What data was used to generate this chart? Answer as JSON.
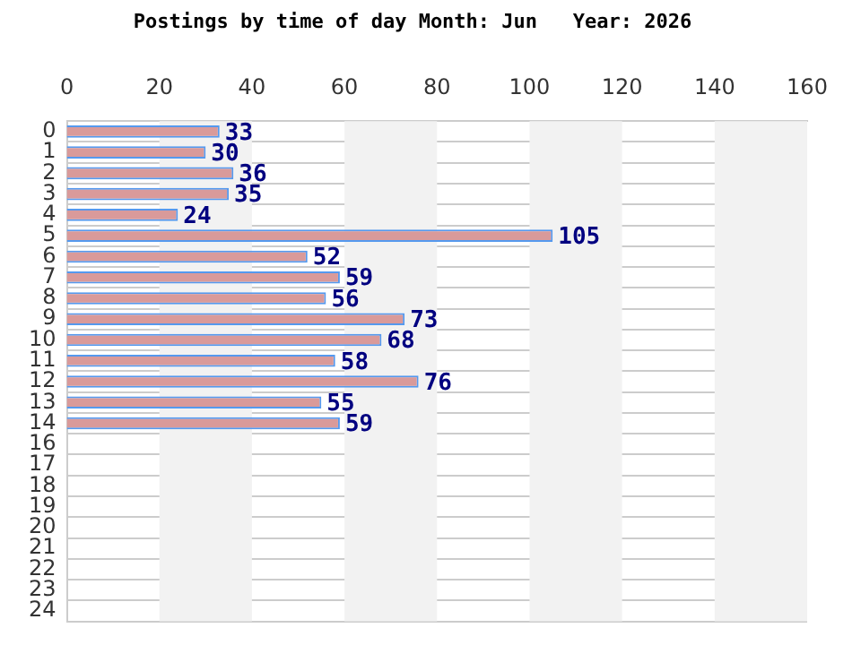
{
  "chart_data": {
    "type": "bar",
    "orientation": "horizontal",
    "title": "Postings by time of day Month: Jun   Year: 2026",
    "categories": [
      "0",
      "1",
      "2",
      "3",
      "4",
      "5",
      "6",
      "7",
      "8",
      "9",
      "10",
      "11",
      "12",
      "13",
      "14",
      "16",
      "17",
      "18",
      "19",
      "20",
      "21",
      "22",
      "23",
      "24"
    ],
    "values": [
      33,
      30,
      36,
      35,
      24,
      105,
      52,
      59,
      56,
      73,
      68,
      58,
      76,
      55,
      59,
      null,
      null,
      null,
      null,
      null,
      null,
      null,
      null,
      null
    ],
    "color": "#d99a9a",
    "xlim": [
      0,
      160
    ],
    "xticks": [
      0,
      20,
      40,
      60,
      80,
      100,
      120,
      140,
      160
    ],
    "grid": true,
    "data_labels": true
  }
}
